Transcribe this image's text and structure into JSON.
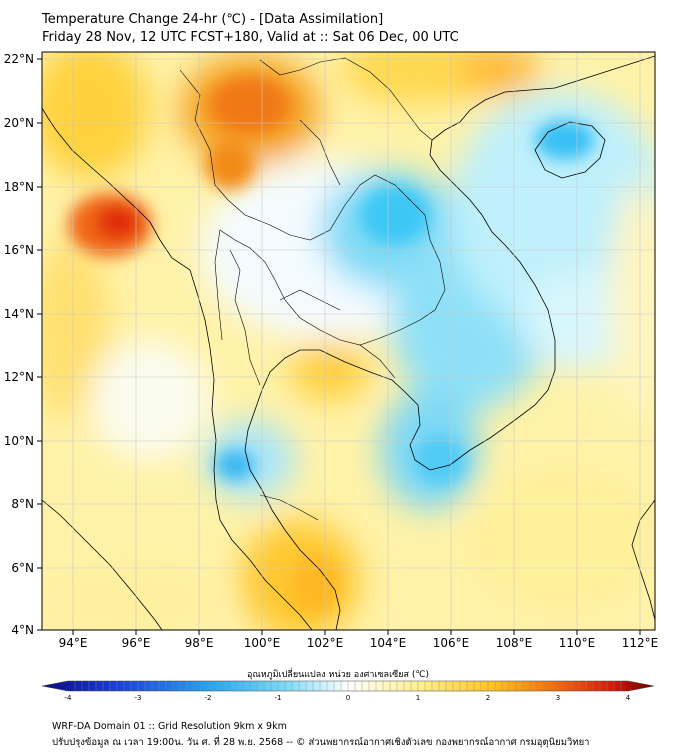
{
  "header": {
    "title_line1": "Temperature Change 24-hr (℃) - [Data Assimilation]",
    "title_line2": "Friday 28 Nov, 12 UTC FCST+180, Valid at :: Sat 06 Dec, 00 UTC"
  },
  "map": {
    "lon_range": [
      93,
      112.4
    ],
    "lat_range": [
      4,
      22.2
    ],
    "lat_ticks": [
      "22°N",
      "20°N",
      "18°N",
      "16°N",
      "14°N",
      "12°N",
      "10°N",
      "8°N",
      "6°N",
      "4°N"
    ],
    "lon_ticks": [
      "94°E",
      "96°E",
      "98°E",
      "100°E",
      "102°E",
      "104°E",
      "106°E",
      "108°E",
      "110°E",
      "112°E"
    ],
    "colors": {
      "cold_strong": "#0a17b8",
      "cold": "#33c7f5",
      "neutral": "#ffffff",
      "warm": "#ffd23c",
      "hot": "#f06a10",
      "hot_strong": "#7a0000"
    }
  },
  "colorbar": {
    "title": "อุณหภูมิเปลี่ยนแปลง หน่วย องศาเซลเซียส (℃)",
    "range": [
      -4,
      4
    ],
    "ticks": [
      "-4",
      "-3",
      "-2",
      "-1",
      "0",
      "1",
      "2",
      "3",
      "4"
    ]
  },
  "footer": {
    "line1": "WRF-DA Domain 01 :: Grid Resolution 9km x 9km",
    "line2": "ปรับปรุงข้อมูล ณ เวลา 19:00น. วัน ศ. ที่ 28 พ.ย. 2568 -- © ส่วนพยากรณ์อากาศเชิงตัวเลข กองพยากรณ์อากาศ กรมอุตุนิยมวิทยา"
  }
}
